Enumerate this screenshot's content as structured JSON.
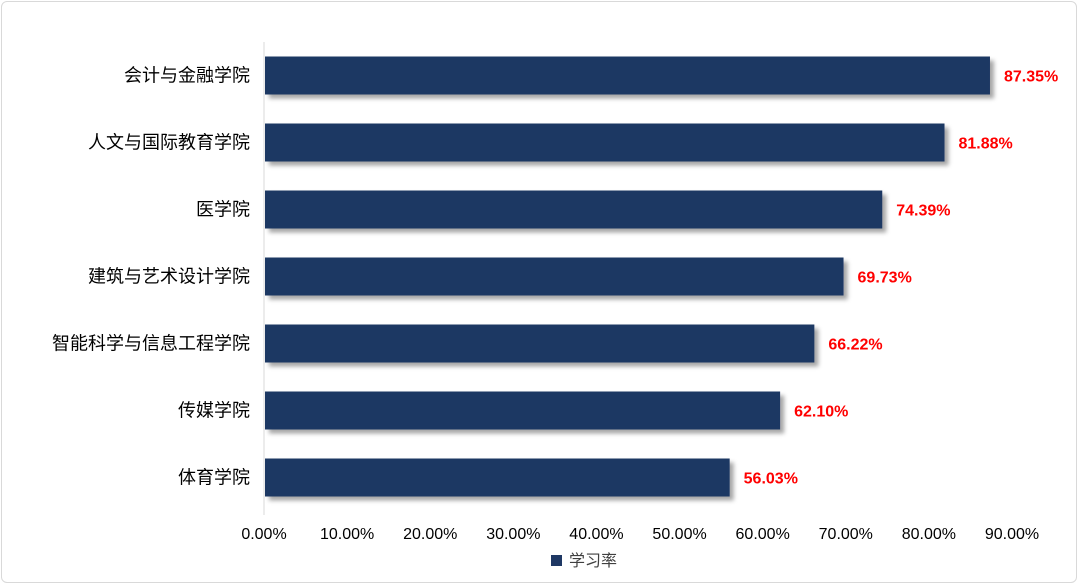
{
  "chart_data": {
    "type": "bar",
    "orientation": "horizontal",
    "categories": [
      "会计与金融学院",
      "人文与国际教育学院",
      "医学院",
      "建筑与艺术设计学院",
      "智能科学与信息工程学院",
      "传媒学院",
      "体育学院"
    ],
    "series": [
      {
        "name": "学习率",
        "values": [
          87.35,
          81.88,
          74.39,
          69.73,
          66.22,
          62.1,
          56.03
        ],
        "color": "#1f3864"
      }
    ],
    "data_labels": [
      "87.35%",
      "81.88%",
      "74.39%",
      "69.73%",
      "66.22%",
      "62.10%",
      "56.03%"
    ],
    "data_label_color": "#ff0000",
    "x_ticks": [
      "0.00%",
      "10.00%",
      "20.00%",
      "30.00%",
      "40.00%",
      "50.00%",
      "60.00%",
      "70.00%",
      "80.00%",
      "90.00%"
    ],
    "xlim": [
      0,
      90
    ],
    "grid": false,
    "legend_position": "bottom",
    "title": "",
    "xlabel": "",
    "ylabel": ""
  }
}
